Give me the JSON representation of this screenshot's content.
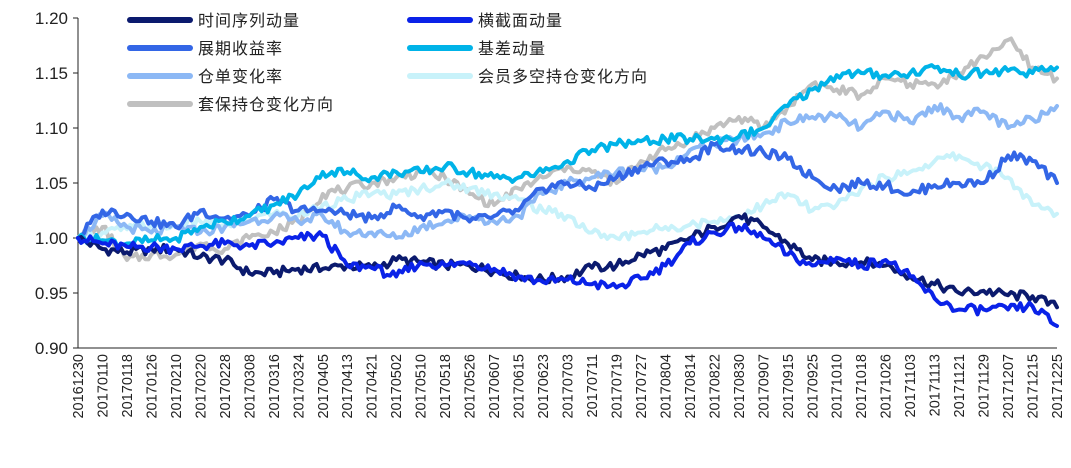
{
  "chart_data": {
    "type": "line",
    "title": "",
    "xlabel": "",
    "ylabel": "",
    "ylim": [
      0.9,
      1.2
    ],
    "yticks": [
      "1.20",
      "1.15",
      "1.10",
      "1.05",
      "1.00",
      "0.95",
      "0.90"
    ],
    "grid": false,
    "legend_position": "top",
    "x_tick_labels": [
      "20161230",
      "20170110",
      "20170118",
      "20170126",
      "20170210",
      "20170220",
      "20170228",
      "20170308",
      "20170316",
      "20170324",
      "20170405",
      "20170413",
      "20170421",
      "20170502",
      "20170510",
      "20170518",
      "20170526",
      "20170607",
      "20170615",
      "20170623",
      "20170703",
      "20170711",
      "20170719",
      "20170727",
      "20170804",
      "20170814",
      "20170822",
      "20170830",
      "20170907",
      "20170915",
      "20170925",
      "20171010",
      "20171018",
      "20171026",
      "20171103",
      "20171113",
      "20171121",
      "20171129",
      "20171207",
      "20171215",
      "20171225"
    ],
    "series": [
      {
        "name": "时间序列动量",
        "color": "#0b1a6e",
        "values": [
          1.0,
          0.99,
          0.987,
          0.99,
          0.99,
          0.983,
          0.98,
          0.968,
          0.968,
          0.972,
          0.972,
          0.975,
          0.973,
          0.98,
          0.978,
          0.975,
          0.975,
          0.97,
          0.965,
          0.962,
          0.965,
          0.973,
          0.975,
          0.985,
          0.99,
          1.0,
          1.01,
          1.02,
          1.01,
          0.995,
          0.98,
          0.978,
          0.978,
          0.975,
          0.965,
          0.958,
          0.95,
          0.952,
          0.948,
          0.947,
          0.937
        ]
      },
      {
        "name": "横截面动量",
        "color": "#0a22e8",
        "values": [
          1.0,
          0.995,
          0.992,
          0.992,
          0.99,
          0.993,
          0.995,
          0.993,
          0.995,
          1.0,
          1.002,
          0.975,
          0.973,
          0.965,
          0.978,
          0.975,
          0.978,
          0.972,
          0.965,
          0.96,
          0.962,
          0.958,
          0.955,
          0.963,
          0.975,
          0.995,
          1.005,
          1.01,
          1.0,
          0.985,
          0.975,
          0.982,
          0.975,
          0.98,
          0.965,
          0.945,
          0.935,
          0.935,
          0.935,
          0.938,
          0.92
        ]
      },
      {
        "name": "展期收益率",
        "color": "#3366e6",
        "values": [
          1.0,
          1.025,
          1.022,
          1.015,
          1.01,
          1.025,
          1.018,
          1.02,
          1.035,
          1.025,
          1.025,
          1.022,
          1.018,
          1.028,
          1.02,
          1.025,
          1.015,
          1.02,
          1.025,
          1.045,
          1.05,
          1.045,
          1.055,
          1.065,
          1.07,
          1.07,
          1.085,
          1.08,
          1.078,
          1.072,
          1.055,
          1.045,
          1.05,
          1.048,
          1.04,
          1.048,
          1.05,
          1.05,
          1.075,
          1.07,
          1.05
        ]
      },
      {
        "name": "基差动量",
        "color": "#00b3e8",
        "values": [
          1.0,
          0.998,
          0.995,
          0.998,
          1.0,
          1.01,
          1.015,
          1.02,
          1.03,
          1.04,
          1.06,
          1.06,
          1.055,
          1.06,
          1.06,
          1.065,
          1.06,
          1.055,
          1.055,
          1.06,
          1.07,
          1.08,
          1.085,
          1.088,
          1.09,
          1.09,
          1.09,
          1.092,
          1.1,
          1.12,
          1.135,
          1.148,
          1.15,
          1.148,
          1.15,
          1.155,
          1.148,
          1.15,
          1.152,
          1.15,
          1.155
        ]
      },
      {
        "name": "仓单变化率",
        "color": "#8cb8f5",
        "values": [
          1.0,
          1.02,
          1.01,
          1.005,
          1.01,
          1.005,
          1.01,
          1.015,
          1.02,
          1.015,
          1.02,
          1.005,
          1.005,
          1.0,
          1.01,
          1.015,
          1.02,
          1.015,
          1.02,
          1.04,
          1.05,
          1.055,
          1.06,
          1.062,
          1.065,
          1.08,
          1.085,
          1.09,
          1.095,
          1.105,
          1.11,
          1.11,
          1.1,
          1.115,
          1.105,
          1.12,
          1.11,
          1.115,
          1.1,
          1.108,
          1.12
        ]
      },
      {
        "name": "会员多空持仓变化方向",
        "color": "#c8f2fa",
        "values": [
          1.0,
          1.005,
          1.008,
          1.012,
          1.01,
          1.015,
          1.012,
          1.018,
          1.022,
          1.02,
          1.03,
          1.035,
          1.04,
          1.04,
          1.045,
          1.05,
          1.045,
          1.04,
          1.035,
          1.025,
          1.02,
          1.005,
          1.0,
          1.005,
          1.01,
          1.012,
          1.015,
          1.02,
          1.03,
          1.04,
          1.025,
          1.03,
          1.045,
          1.055,
          1.06,
          1.07,
          1.075,
          1.065,
          1.055,
          1.03,
          1.022
        ]
      },
      {
        "name": "套保持仓变化方向",
        "color": "#c0c0c0",
        "values": [
          1.0,
          1.01,
          0.98,
          0.985,
          0.985,
          0.995,
          0.99,
          1.0,
          1.005,
          1.015,
          1.04,
          1.045,
          1.05,
          1.055,
          1.06,
          1.055,
          1.04,
          1.03,
          1.045,
          1.055,
          1.065,
          1.06,
          1.05,
          1.07,
          1.08,
          1.09,
          1.1,
          1.11,
          1.1,
          1.12,
          1.14,
          1.135,
          1.13,
          1.145,
          1.14,
          1.14,
          1.15,
          1.165,
          1.18,
          1.155,
          1.145
        ]
      }
    ]
  }
}
